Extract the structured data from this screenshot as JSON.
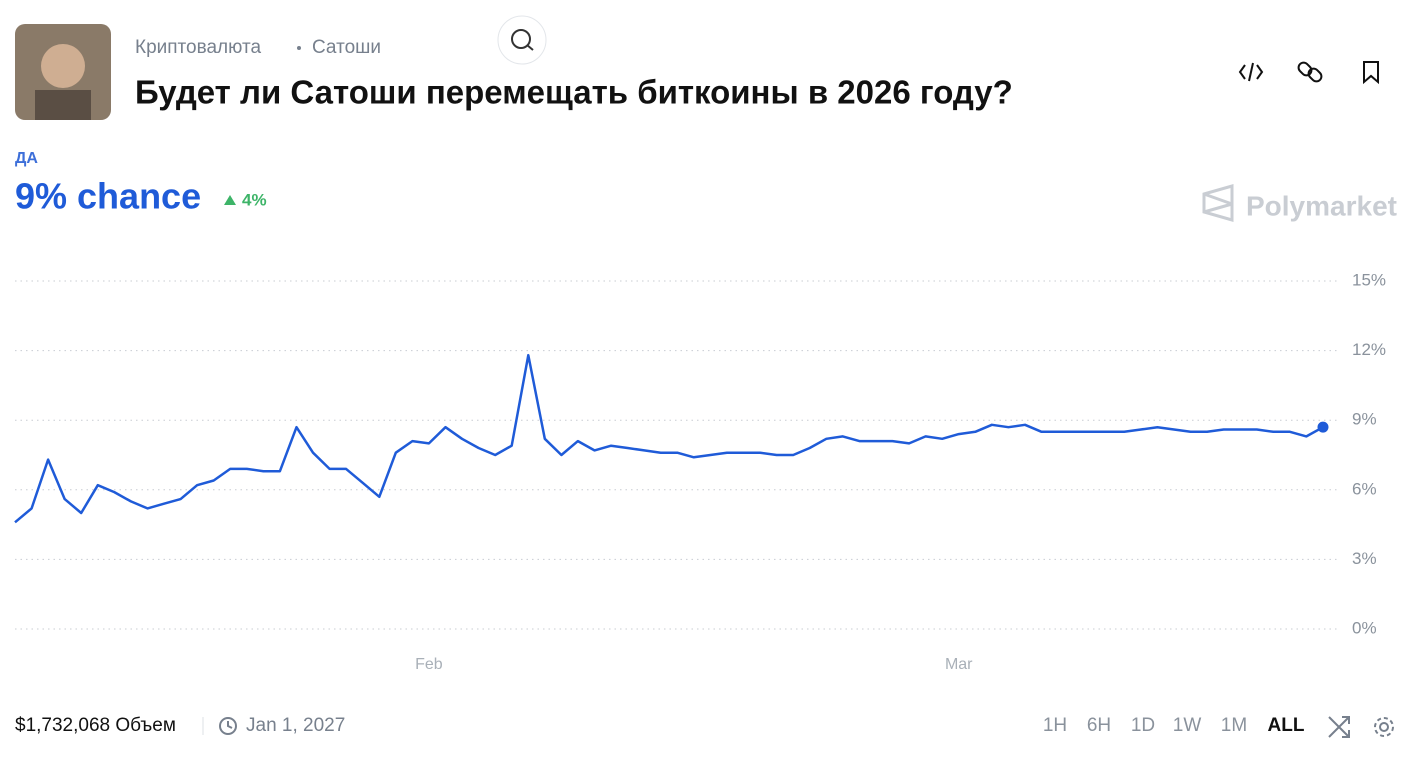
{
  "header": {
    "breadcrumb": [
      "Криптовалюта",
      "Сатоши"
    ],
    "title": "Будет ли Сатоши перемещать биткоины в 2026 году?"
  },
  "outcome": {
    "label": "ДА",
    "chance": "9% chance",
    "change": "4%"
  },
  "brand": "Polymarket",
  "footer": {
    "volume": "$1,732,068 Объем",
    "end_date": "Jan 1, 2027",
    "ranges": [
      "1H",
      "6H",
      "1D",
      "1W",
      "1M",
      "ALL"
    ],
    "active_range": "ALL"
  },
  "chart_data": {
    "type": "line",
    "color": "#1f5bd8",
    "grid": true,
    "categories": [
      null,
      null,
      null,
      null,
      null,
      null,
      null,
      null,
      null,
      null,
      null,
      null,
      null,
      null,
      null,
      null,
      null,
      null,
      null,
      null,
      null,
      null,
      null,
      null,
      null,
      "Feb",
      null,
      null,
      null,
      null,
      null,
      null,
      null,
      null,
      null,
      null,
      null,
      null,
      null,
      null,
      null,
      null,
      null,
      null,
      null,
      null,
      null,
      null,
      null,
      null,
      null,
      null,
      null,
      null,
      null,
      null,
      null,
      "Mar",
      null,
      null,
      null,
      null,
      null,
      null,
      null,
      null,
      null,
      null,
      null,
      null,
      null,
      null,
      null,
      null,
      null,
      null,
      null,
      null,
      null,
      null
    ],
    "values": [
      4.6,
      5.2,
      7.3,
      5.6,
      5.0,
      6.2,
      5.9,
      5.5,
      5.2,
      5.4,
      5.6,
      6.2,
      6.4,
      6.9,
      6.9,
      6.8,
      6.8,
      8.7,
      7.6,
      6.9,
      6.9,
      6.3,
      5.7,
      7.6,
      8.1,
      8.0,
      8.7,
      8.2,
      7.8,
      7.5,
      7.9,
      11.8,
      8.2,
      7.5,
      8.1,
      7.7,
      7.9,
      7.8,
      7.7,
      7.6,
      7.6,
      7.4,
      7.5,
      7.6,
      7.6,
      7.6,
      7.5,
      7.5,
      7.8,
      8.2,
      8.3,
      8.1,
      8.1,
      8.1,
      8.0,
      8.3,
      8.2,
      8.4,
      8.5,
      8.8,
      8.7,
      8.8,
      8.5,
      8.5,
      8.5,
      8.5,
      8.5,
      8.5,
      8.6,
      8.7,
      8.6,
      8.5,
      8.5,
      8.6,
      8.6,
      8.6,
      8.5,
      8.5,
      8.3,
      8.7
    ],
    "ylim": [
      0,
      15
    ],
    "yticks": [
      {
        "value": 0,
        "label": "0%"
      },
      {
        "value": 3,
        "label": "3%"
      },
      {
        "value": 6,
        "label": "6%"
      },
      {
        "value": 9,
        "label": "9%"
      },
      {
        "value": 12,
        "label": "12%"
      },
      {
        "value": 15,
        "label": "15%"
      }
    ]
  }
}
